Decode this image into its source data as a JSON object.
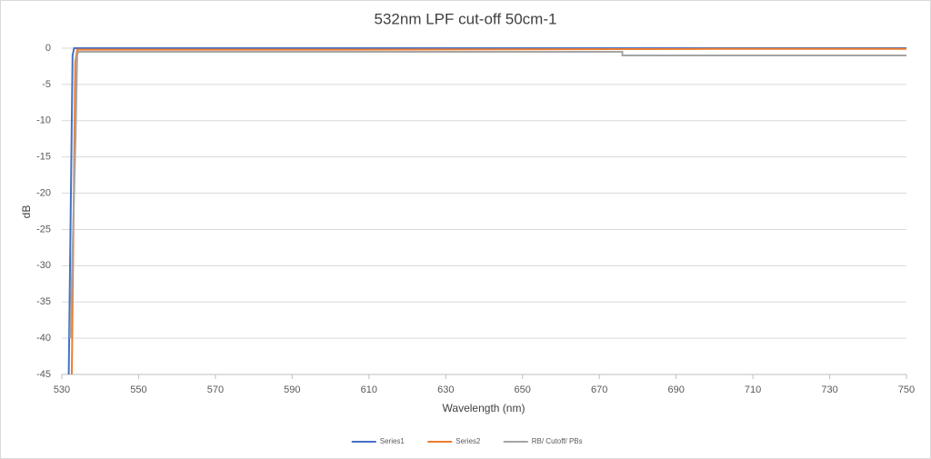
{
  "chart_data": {
    "type": "line",
    "title": "532nm LPF cut-off 50cm-1",
    "xlabel": "Wavelength (nm)",
    "ylabel": "dB",
    "series": [
      {
        "name": "Series1",
        "color": "#4472c4",
        "x": [
          531.8,
          532.8,
          533.2,
          750
        ],
        "values": [
          -45,
          -1,
          0,
          0
        ]
      },
      {
        "name": "Series2",
        "color": "#ed7d31",
        "x": [
          532.6,
          533.5,
          534,
          600,
          700,
          750
        ],
        "values": [
          -45,
          -2,
          -0.2,
          -0.2,
          -0.1,
          -0.1
        ]
      },
      {
        "name": "RB/ Cutoff/ PBs",
        "color": "#a5a5a5",
        "x": [
          532.2,
          533.6,
          534,
          534.3,
          676,
          676,
          750
        ],
        "values": [
          -40,
          -12,
          -1,
          -0.5,
          -0.5,
          -1,
          -1
        ]
      }
    ],
    "xlim": [
      530,
      750
    ],
    "xticks": [
      530,
      550,
      570,
      590,
      610,
      630,
      650,
      670,
      690,
      710,
      730,
      750
    ],
    "ylim": [
      -45,
      0
    ],
    "yticks": [
      0,
      -5,
      -10,
      -15,
      -20,
      -25,
      -30,
      -35,
      -40,
      -45
    ],
    "grid": true,
    "legend": "bottom"
  }
}
